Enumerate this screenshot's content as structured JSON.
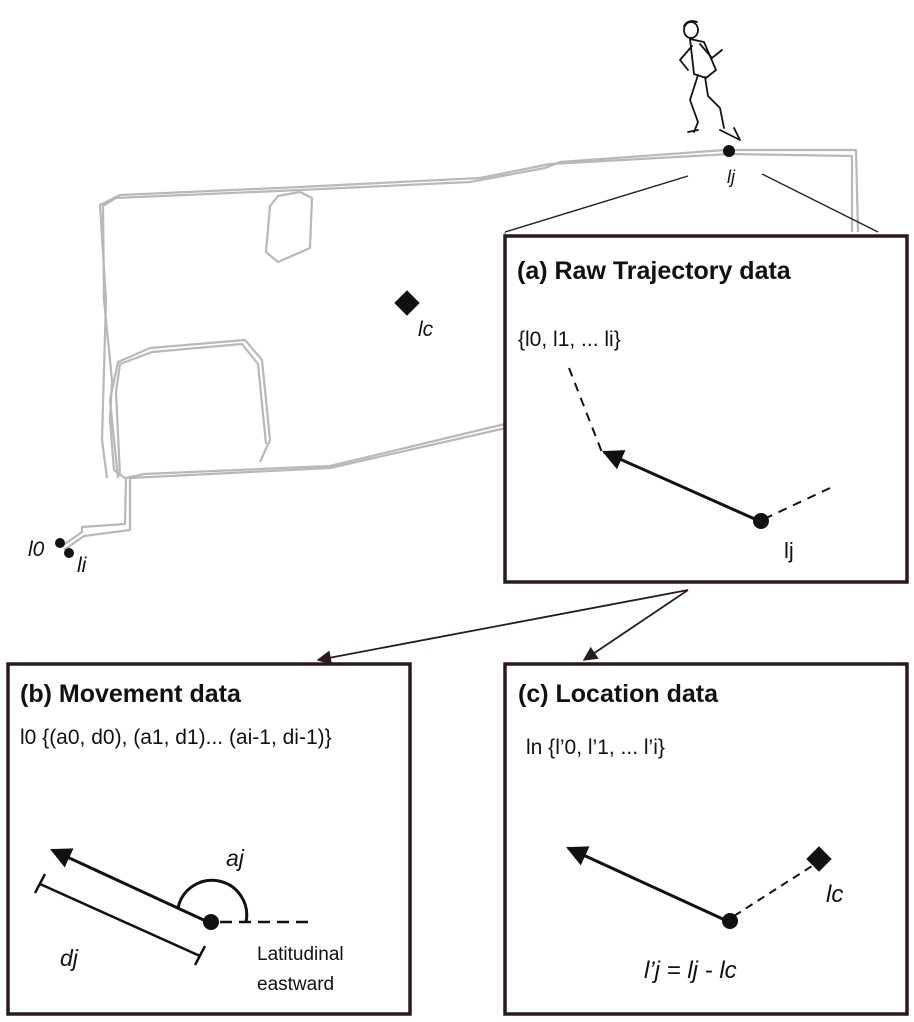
{
  "map": {
    "runner_icon": "runner-icon",
    "point_lj": "lj",
    "point_lc": "lc",
    "point_l0": "l0",
    "point_li": "li"
  },
  "panel_a": {
    "title": "(a) Raw Trajectory data",
    "set": "{l0, l1, ... li}",
    "point": "lj"
  },
  "panel_b": {
    "title": "(b) Movement data",
    "set": "l0 {(a0, d0), (a1, d1)... (ai-1, di-1)}",
    "angle_label": "aj",
    "distance_label": "dj",
    "ref_line1": "Latitudinal",
    "ref_line2": "eastward"
  },
  "panel_c": {
    "title": "(c) Location data",
    "set": "ln {l’0, l’1, ... l’i}",
    "center_label": "lc",
    "formula": "l’j = lj - lc"
  }
}
